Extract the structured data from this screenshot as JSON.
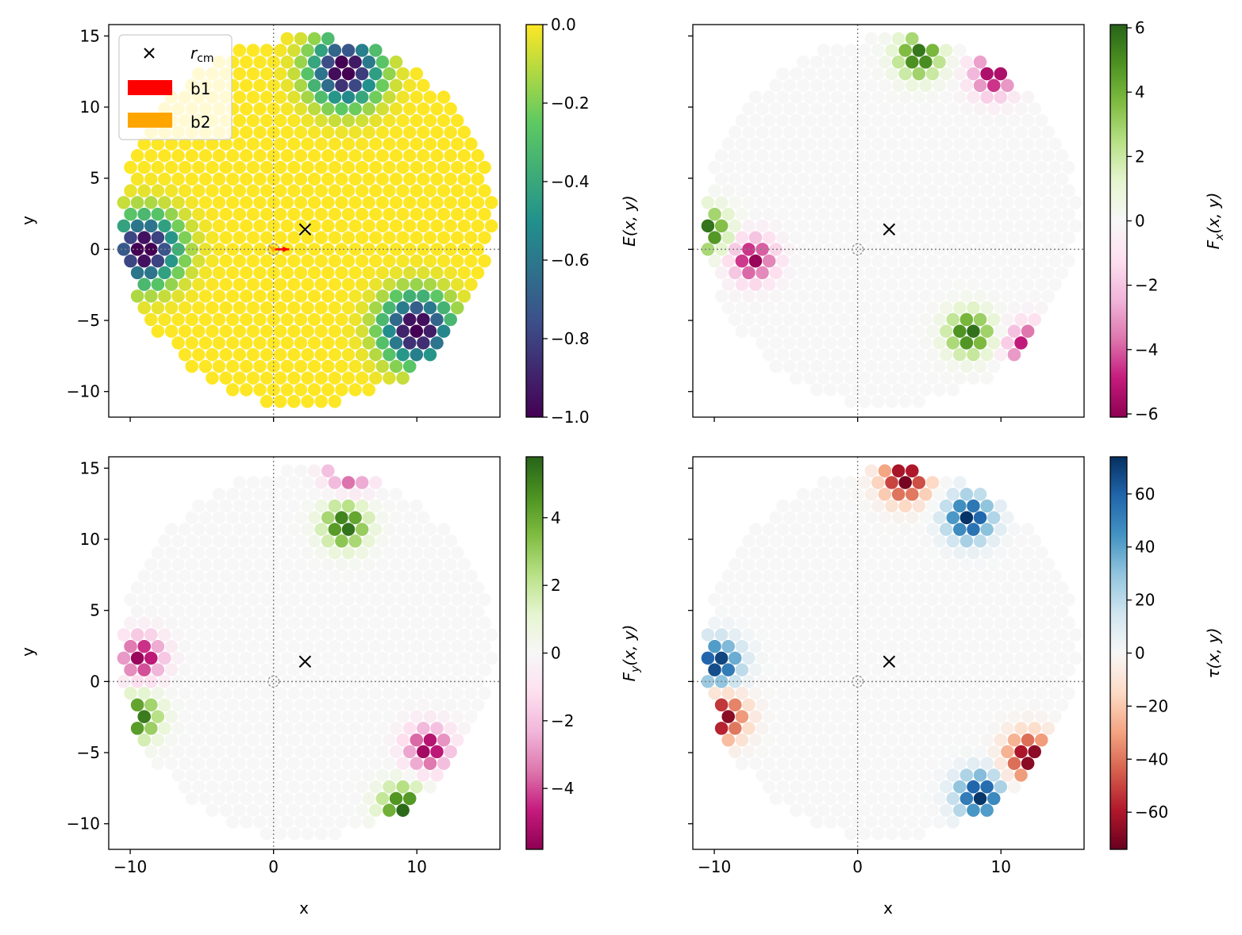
{
  "figure": {
    "x_label": "x",
    "y_label": "y"
  },
  "legend": {
    "entries": [
      {
        "marker": "x",
        "label_main": "r",
        "label_sub": "cm",
        "color": "#000000"
      },
      {
        "marker": "patch",
        "label": "b1",
        "color": "#ff0000"
      },
      {
        "marker": "patch",
        "label": "b2",
        "color": "#ffa500"
      }
    ],
    "position": "upper-left of top-left panel"
  },
  "chart_data": [
    {
      "type": "scatter",
      "panel": "top-left",
      "quantity": "E",
      "colorbar_label": "E(x, y)",
      "colormap": "viridis",
      "clim": [
        -1.0,
        0.0
      ],
      "colorbar_ticks": [
        0.0,
        -0.2,
        -0.4,
        -0.6,
        -0.8,
        -1.0
      ],
      "colorbar_tick_labels": [
        "0.0",
        "−0.2",
        "−0.4",
        "−0.6",
        "−0.8",
        "−1.0"
      ],
      "xlim": [
        -11.5,
        15.8
      ],
      "ylim": [
        -11.8,
        15.8
      ],
      "xticks": [
        -10,
        0,
        10
      ],
      "yticks": [
        -10,
        -5,
        0,
        5,
        10,
        15
      ],
      "show_x_ticklabels": false,
      "show_y_ticklabels": true,
      "r_cm": [
        2.2,
        1.4
      ],
      "arrows": [
        {
          "name": "b1",
          "color": "#ff0000",
          "dx": 1.1,
          "dy": 0.0
        },
        {
          "name": "b2",
          "color": "#ffa500",
          "dx": -0.3,
          "dy": 0.2
        }
      ]
    },
    {
      "type": "scatter",
      "panel": "top-right",
      "quantity": "Fx",
      "colorbar_label": "F_x(x, y)",
      "colormap": "PiYG",
      "clim": [
        -6.1,
        6.1
      ],
      "colorbar_ticks": [
        6,
        4,
        2,
        0,
        -2,
        -4,
        -6
      ],
      "colorbar_tick_labels": [
        "6",
        "4",
        "2",
        "0",
        "−2",
        "−4",
        "−6"
      ],
      "xlim": [
        -11.5,
        15.8
      ],
      "ylim": [
        -11.8,
        15.8
      ],
      "xticks": [
        -10,
        0,
        10
      ],
      "yticks": [
        -10,
        -5,
        0,
        5,
        10,
        15
      ],
      "show_x_ticklabels": false,
      "show_y_ticklabels": false,
      "r_cm": [
        2.2,
        1.4
      ]
    },
    {
      "type": "scatter",
      "panel": "bottom-left",
      "quantity": "Fy",
      "colorbar_label": "F_y(x, y)",
      "colormap": "PiYG",
      "clim": [
        -5.8,
        5.8
      ],
      "colorbar_ticks": [
        4,
        2,
        0,
        -2,
        -4
      ],
      "colorbar_tick_labels": [
        "4",
        "2",
        "0",
        "−2",
        "−4"
      ],
      "xlim": [
        -11.5,
        15.8
      ],
      "ylim": [
        -11.8,
        15.8
      ],
      "xticks": [
        -10,
        0,
        10
      ],
      "yticks": [
        -10,
        -5,
        0,
        5,
        10,
        15
      ],
      "show_x_ticklabels": true,
      "show_y_ticklabels": true,
      "r_cm": [
        2.2,
        1.4
      ]
    },
    {
      "type": "scatter",
      "panel": "bottom-right",
      "quantity": "tau",
      "colorbar_label": "τ(x, y)",
      "colormap": "RdBu",
      "clim": [
        -74,
        74
      ],
      "colorbar_ticks": [
        60,
        40,
        20,
        0,
        -20,
        -40,
        -60
      ],
      "colorbar_tick_labels": [
        "60",
        "40",
        "20",
        "0",
        "−20",
        "−40",
        "−60"
      ],
      "xlim": [
        -11.5,
        15.8
      ],
      "ylim": [
        -11.8,
        15.8
      ],
      "xticks": [
        -10,
        0,
        10
      ],
      "yticks": [
        -10,
        -5,
        0,
        5,
        10,
        15
      ],
      "show_x_ticklabels": true,
      "show_y_ticklabels": false,
      "r_cm": [
        2.2,
        1.4
      ]
    }
  ],
  "particle_field": {
    "disk_center": [
      2.3,
      2.0
    ],
    "disk_radius": 13.0,
    "lattice_spacing": 0.95,
    "hotspots": [
      {
        "name": "top",
        "center": [
          5.0,
          12.6
        ],
        "radius": 2.4
      },
      {
        "name": "left",
        "center": [
          -9.0,
          0.0
        ],
        "radius": 2.4
      },
      {
        "name": "bottom-right",
        "center": [
          10.0,
          -5.6
        ],
        "radius": 2.4
      }
    ],
    "fx_lobes": [
      {
        "center": [
          4.3,
          13.6
        ],
        "amp": 6.0
      },
      {
        "center": [
          9.5,
          12.3
        ],
        "amp": -6.0
      },
      {
        "center": [
          -10.5,
          1.3
        ],
        "amp": 6.0
      },
      {
        "center": [
          -7.3,
          -0.7
        ],
        "amp": -6.0
      },
      {
        "center": [
          7.8,
          -5.9
        ],
        "amp": 6.0
      },
      {
        "center": [
          12.0,
          -6.8
        ],
        "amp": -6.0
      }
    ],
    "fy_lobes": [
      {
        "center": [
          5.3,
          15.0
        ],
        "amp": -5.8
      },
      {
        "center": [
          5.0,
          11.0
        ],
        "amp": 5.8
      },
      {
        "center": [
          -9.2,
          1.7
        ],
        "amp": -5.8
      },
      {
        "center": [
          -9.5,
          -2.5
        ],
        "amp": 5.8
      },
      {
        "center": [
          10.8,
          -4.7
        ],
        "amp": -5.8
      },
      {
        "center": [
          9.0,
          -8.8
        ],
        "amp": 5.8
      }
    ],
    "tau_lobes": [
      {
        "center": [
          3.3,
          14.3
        ],
        "amp": -74
      },
      {
        "center": [
          7.8,
          11.5
        ],
        "amp": 74
      },
      {
        "center": [
          -9.8,
          1.3
        ],
        "amp": 74
      },
      {
        "center": [
          -9.5,
          -2.5
        ],
        "amp": -74
      },
      {
        "center": [
          12.0,
          -5.3
        ],
        "amp": -74
      },
      {
        "center": [
          8.5,
          -8.0
        ],
        "amp": 74
      }
    ]
  }
}
